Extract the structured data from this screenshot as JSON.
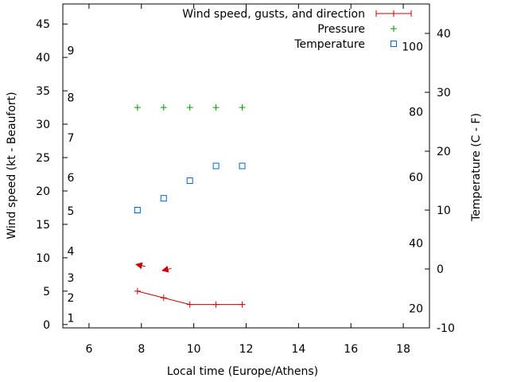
{
  "chart_data": {
    "type": "scatter",
    "xlabel": "Local time (Europe/Athens)",
    "ylabel": "Wind speed (kt - Beaufort)",
    "y2label": "Temperature (C - F)",
    "xlim": [
      5,
      19
    ],
    "ylim": [
      -0.5,
      48
    ],
    "y2lim": [
      -10,
      45
    ],
    "xticks": [
      6,
      8,
      10,
      12,
      14,
      16,
      18
    ],
    "yticks": [
      0,
      5,
      10,
      15,
      20,
      25,
      30,
      35,
      40,
      45
    ],
    "y2ticks": [
      -10,
      0,
      10,
      20,
      30,
      40
    ],
    "beaufort_labels": [
      {
        "label": "1",
        "kt": 1.0
      },
      {
        "label": "2",
        "kt": 4.0
      },
      {
        "label": "3",
        "kt": 7.0
      },
      {
        "label": "4",
        "kt": 11.0
      },
      {
        "label": "5",
        "kt": 17.0
      },
      {
        "label": "6",
        "kt": 22.0
      },
      {
        "label": "7",
        "kt": 28.0
      },
      {
        "label": "8",
        "kt": 34.0
      },
      {
        "label": "9",
        "kt": 41.0
      }
    ],
    "fahrenheit_labels": [
      {
        "label": "20",
        "c": -6.7
      },
      {
        "label": "40",
        "c": 4.4
      },
      {
        "label": "60",
        "c": 15.6
      },
      {
        "label": "80",
        "c": 26.7
      },
      {
        "label": "100",
        "c": 37.8
      }
    ],
    "legend": [
      {
        "key": "wind",
        "label": "Wind speed, gusts, and direction"
      },
      {
        "key": "pressure",
        "label": "Pressure"
      },
      {
        "key": "temperature",
        "label": "Temperature"
      }
    ],
    "series": [
      {
        "name": "Wind speed, gusts, and direction",
        "x": [
          7.85,
          8.85,
          9.85,
          10.85,
          11.85
        ],
        "y": [
          5.0,
          4.0,
          3.0,
          3.0,
          3.0
        ]
      },
      {
        "name": "Pressure",
        "x": [
          7.85,
          8.85,
          9.85,
          10.85,
          11.85
        ],
        "y": [
          32.5,
          32.5,
          32.5,
          32.5,
          32.5
        ]
      },
      {
        "name": "Temperature",
        "axis": "y2",
        "x": [
          7.85,
          8.85,
          9.85,
          10.85,
          11.85
        ],
        "y": [
          10.0,
          12.0,
          15.0,
          17.5,
          17.5
        ]
      }
    ],
    "wind_direction_arrows": [
      {
        "x": 7.85,
        "y": 9.0,
        "dx": 0.3,
        "dy": -0.3
      },
      {
        "x": 8.85,
        "y": 8.1,
        "dx": 0.3,
        "dy": 0.3
      }
    ],
    "colors": {
      "wind": "#cc0000",
      "pressure": "#009900",
      "temperature": "#0066cc",
      "axis": "#000000"
    }
  }
}
